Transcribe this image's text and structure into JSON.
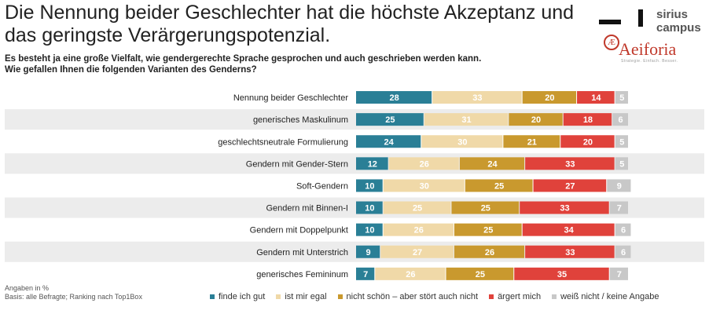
{
  "header": {
    "title": "Die Nennung beider Geschlechter hat die höchste Akzeptanz und das geringste Verärgerungspotenzial.",
    "subtitle_line1": "Es besteht ja eine große Vielfalt, wie gendergerechte Sprache gesprochen und auch geschrieben werden kann.",
    "subtitle_line2": "Wie gefallen Ihnen die folgenden Varianten des Genderns?"
  },
  "logos": {
    "sirius": "sirius campus",
    "aeiforia": "Aeiforia",
    "aeiforia_tagline": "Strategie. Einfach. Besser."
  },
  "footer": {
    "line1": "Angaben in %",
    "line2": "Basis: alle Befragte; Ranking nach Top1Box"
  },
  "colors": {
    "finde_ich_gut": "#2a7f96",
    "ist_mir_egal": "#f0d9a8",
    "nicht_schoen": "#c9992e",
    "aergert_mich": "#e0423b",
    "weiss_nicht": "#c8c8c8",
    "row_band": "#ececec"
  },
  "chart_data": {
    "type": "bar",
    "orientation": "horizontal",
    "stacked": true,
    "categories": [
      "Nennung beider Geschlechter",
      "generisches Maskulinum",
      "geschlechtsneutrale Formulierung",
      "Gendern mit Gender-Stern",
      "Soft-Gendern",
      "Gendern mit Binnen-I",
      "Gendern mit Doppelpunkt",
      "Gendern mit Unterstrich",
      "generisches Femininum"
    ],
    "series": [
      {
        "name": "finde ich gut",
        "values": [
          28,
          25,
          24,
          12,
          10,
          10,
          10,
          9,
          7
        ]
      },
      {
        "name": "ist mir egal",
        "values": [
          33,
          31,
          30,
          26,
          30,
          25,
          26,
          27,
          26
        ]
      },
      {
        "name": "nicht schön – aber stört auch nicht",
        "values": [
          20,
          20,
          21,
          24,
          25,
          25,
          25,
          26,
          25
        ]
      },
      {
        "name": "ärgert mich",
        "values": [
          14,
          18,
          20,
          33,
          27,
          33,
          34,
          33,
          35
        ]
      },
      {
        "name": "weiß nicht / keine Angabe",
        "values": [
          5,
          6,
          5,
          5,
          9,
          7,
          6,
          6,
          7
        ]
      }
    ]
  }
}
